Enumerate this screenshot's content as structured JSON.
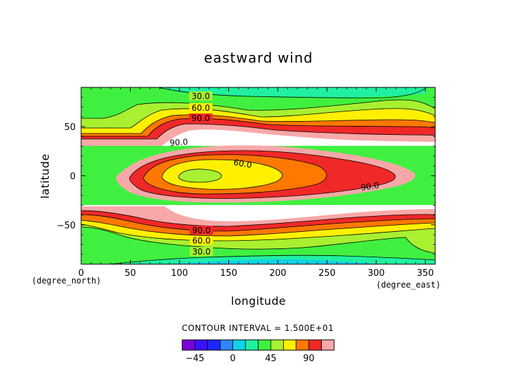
{
  "chart_data": {
    "type": "contour",
    "title": "eastward wind",
    "xlabel": "longitude",
    "ylabel": "latitude",
    "x_unit": "(degree_east)",
    "y_unit": "(degree_north)",
    "xlim": [
      0,
      360
    ],
    "ylim": [
      -90,
      90
    ],
    "x_ticks": [
      0,
      50,
      100,
      150,
      200,
      250,
      300,
      350
    ],
    "y_ticks": [
      -50,
      0,
      50
    ],
    "contour_interval_text": "CONTOUR INTERVAL = 1.500E+01",
    "contour_labels": [
      "30.0",
      "60.0",
      "90.0",
      "90.0",
      "60.0",
      "90.0",
      "90.0",
      "60.0",
      "30.0"
    ],
    "colorbar": {
      "levels": [
        -60,
        -45,
        -30,
        -15,
        0,
        15,
        30,
        45,
        60,
        75,
        90,
        105
      ],
      "tick_values": [
        -45,
        0,
        45,
        90
      ],
      "tick_labels": [
        "−45",
        "0",
        "45",
        "90"
      ]
    },
    "colors": {
      "violet": "#7a00d8",
      "blue": "#1c26ff",
      "azure": "#2c86ff",
      "cyan": "#10d2e8",
      "spring": "#20f0a0",
      "green": "#40f040",
      "lime": "#a8f030",
      "yellow": "#fff000",
      "orange": "#ff7800",
      "red": "#f02828",
      "pink": "#f8a8a8",
      "white": "#ffffff"
    }
  }
}
